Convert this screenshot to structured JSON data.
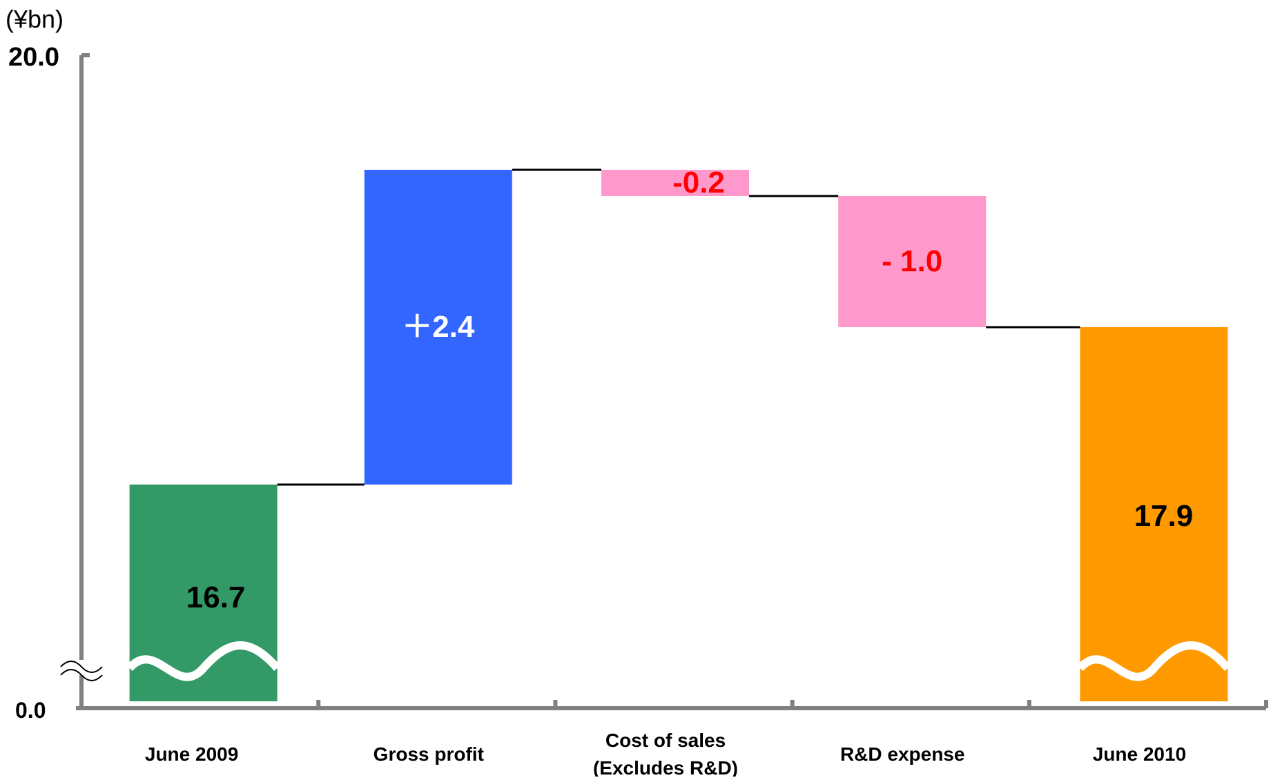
{
  "chart_data": {
    "type": "bar",
    "subtype": "waterfall",
    "unit_label": "(¥bn)",
    "y_tick_labels": [
      "20.0",
      "0.0"
    ],
    "ylim": [
      0,
      20
    ],
    "axis_break": true,
    "categories": [
      "June 2009",
      "Gross profit",
      "Cost of sales\n(Excludes R&D)",
      "R&D expense",
      "June 2010"
    ],
    "bars": [
      {
        "kind": "total",
        "start": 0,
        "end": 16.7,
        "label": "16.7",
        "color": "#339966",
        "label_color": "#000000",
        "break": true
      },
      {
        "kind": "delta",
        "start": 16.7,
        "end": 19.1,
        "label": "＋2.4",
        "color": "#3366ff",
        "label_color": "#ffffff"
      },
      {
        "kind": "delta",
        "start": 19.1,
        "end": 18.9,
        "label": "-0.2",
        "color": "#ff99cc",
        "label_color": "#ff0000"
      },
      {
        "kind": "delta",
        "start": 18.9,
        "end": 17.9,
        "label": "- 1.0",
        "color": "#ff99cc",
        "label_color": "#ff0000"
      },
      {
        "kind": "total",
        "start": 0,
        "end": 17.9,
        "label": "17.9",
        "color": "#ff9900",
        "label_color": "#000000",
        "break": true
      }
    ],
    "colors": {
      "axis": "#808080",
      "connector": "#000000"
    },
    "grid": false,
    "legend": "none"
  }
}
